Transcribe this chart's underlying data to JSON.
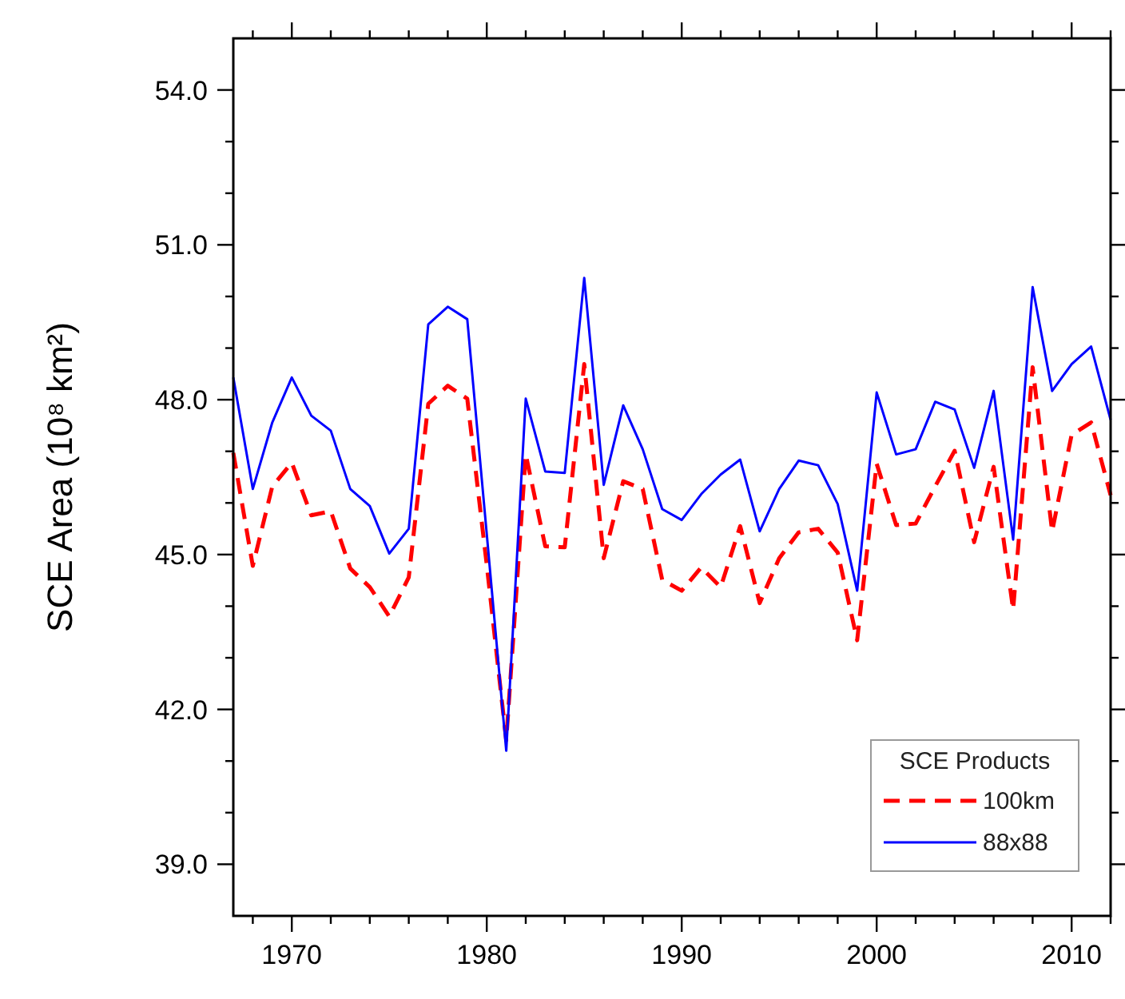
{
  "chart_data": {
    "type": "line",
    "ylabel": "SCE Area (10⁸ km²)",
    "legend_title": "SCE Products",
    "legend": "bottom right",
    "grid": false,
    "marker": "none",
    "x": [
      1967,
      1968,
      1969,
      1970,
      1971,
      1972,
      1973,
      1974,
      1975,
      1976,
      1977,
      1978,
      1979,
      1980,
      1981,
      1982,
      1983,
      1984,
      1985,
      1986,
      1987,
      1988,
      1989,
      1990,
      1991,
      1992,
      1993,
      1994,
      1995,
      1996,
      1997,
      1998,
      1999,
      2000,
      2001,
      2002,
      2003,
      2004,
      2005,
      2006,
      2007,
      2008,
      2009,
      2010,
      2011,
      2012
    ],
    "xlim": [
      1967,
      2012
    ],
    "xticks": [
      {
        "value": 1968,
        "label": null
      },
      1970,
      {
        "value": 1972,
        "label": null
      },
      {
        "value": 1974,
        "label": null
      },
      {
        "value": 1976,
        "label": null
      },
      {
        "value": 1978,
        "label": null
      },
      1980,
      {
        "value": 1982,
        "label": null
      },
      {
        "value": 1984,
        "label": null
      },
      {
        "value": 1986,
        "label": null
      },
      {
        "value": 1988,
        "label": null
      },
      1990,
      {
        "value": 1992,
        "label": null
      },
      {
        "value": 1994,
        "label": null
      },
      {
        "value": 1996,
        "label": null
      },
      {
        "value": 1998,
        "label": null
      },
      2000,
      {
        "value": 2002,
        "label": null
      },
      {
        "value": 2004,
        "label": null
      },
      {
        "value": 2006,
        "label": null
      },
      {
        "value": 2008,
        "label": null
      },
      2010,
      {
        "value": 2012,
        "label": null
      }
    ],
    "ylim": [
      38,
      55
    ],
    "yticks": [
      {
        "value": 39,
        "label": "39.0"
      },
      {
        "value": 40,
        "label": null
      },
      {
        "value": 41,
        "label": null
      },
      {
        "value": 42,
        "label": "42.0"
      },
      {
        "value": 43,
        "label": null
      },
      {
        "value": 44,
        "label": null
      },
      {
        "value": 45,
        "label": "45.0"
      },
      {
        "value": 46,
        "label": null
      },
      {
        "value": 47,
        "label": null
      },
      {
        "value": 48,
        "label": "48.0"
      },
      {
        "value": 49,
        "label": null
      },
      {
        "value": 50,
        "label": null
      },
      {
        "value": 51,
        "label": "51.0"
      },
      {
        "value": 52,
        "label": null
      },
      {
        "value": 53,
        "label": null
      },
      {
        "value": 54,
        "label": "54.0"
      }
    ],
    "series": [
      {
        "name": "100km",
        "color": "#ff0000",
        "line_style": "dashed",
        "values": [
          46.97,
          44.78,
          46.32,
          46.78,
          45.76,
          45.84,
          44.73,
          44.37,
          43.8,
          44.56,
          47.92,
          48.27,
          48.02,
          44.8,
          41.4,
          46.94,
          45.16,
          45.14,
          48.69,
          44.93,
          46.42,
          46.27,
          44.51,
          44.3,
          44.75,
          44.37,
          45.55,
          44.06,
          44.93,
          45.43,
          45.5,
          45.04,
          43.34,
          46.76,
          45.57,
          45.6,
          46.32,
          47.01,
          45.24,
          46.7,
          43.93,
          48.63,
          45.45,
          47.32,
          47.56,
          46.15
        ]
      },
      {
        "name": "88x88",
        "color": "#0000ff",
        "line_style": "solid",
        "values": [
          48.43,
          46.27,
          47.56,
          48.43,
          47.69,
          47.4,
          46.27,
          45.94,
          45.02,
          45.5,
          49.46,
          49.8,
          49.56,
          45.4,
          41.2,
          48.02,
          46.61,
          46.58,
          50.36,
          46.35,
          47.89,
          47.04,
          45.88,
          45.67,
          46.17,
          46.55,
          46.84,
          45.45,
          46.27,
          46.82,
          46.73,
          45.98,
          44.3,
          48.14,
          46.94,
          47.04,
          47.96,
          47.81,
          46.68,
          48.17,
          45.29,
          50.18,
          48.17,
          48.69,
          49.03,
          47.61
        ]
      }
    ]
  }
}
